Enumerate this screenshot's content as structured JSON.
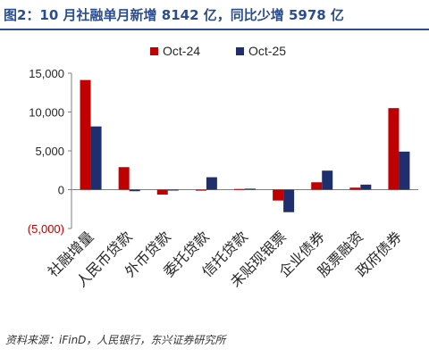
{
  "title": "图2：10 月社融单月新增 8142 亿，同比少增 5978 亿",
  "source": "资料来源：iFinD，人民银行，东兴证券研究所",
  "chart_data": {
    "type": "bar",
    "categories": [
      "社融增量",
      "人民币贷款",
      "外币贷款",
      "委托贷款",
      "信托贷款",
      "未贴现银票",
      "企业债券",
      "股票融资",
      "政府债券"
    ],
    "series": [
      {
        "name": "Oct-24",
        "color": "#c00000",
        "values": [
          14120,
          2900,
          -640,
          -130,
          90,
          -1400,
          950,
          260,
          10500
        ]
      },
      {
        "name": "Oct-25",
        "color": "#1f2f6e",
        "values": [
          8142,
          -200,
          -120,
          1600,
          130,
          -2900,
          2450,
          650,
          4900
        ]
      }
    ],
    "yticks": [
      15000,
      10000,
      5000,
      0,
      -5000
    ],
    "ytick_labels": [
      "15,000",
      "10,000",
      "5,000",
      "0",
      "(5,000)"
    ],
    "ylim": [
      -5000,
      15000
    ],
    "legend_position": "top-center",
    "grid": false,
    "xlabel": "",
    "ylabel": ""
  }
}
